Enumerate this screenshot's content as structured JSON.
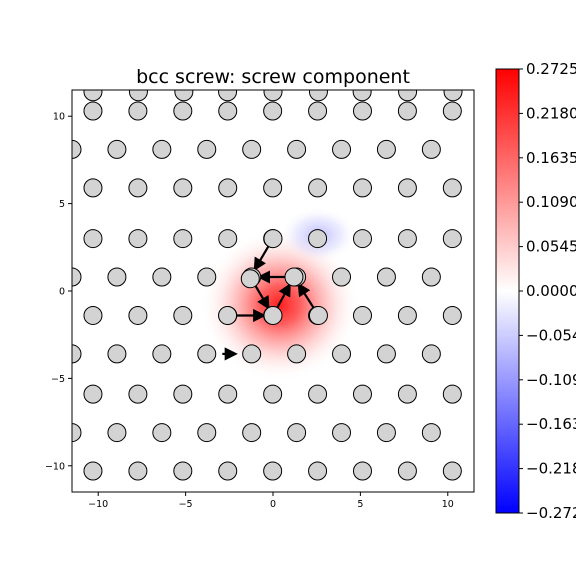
{
  "chart_data": {
    "type": "scatter",
    "title": "bcc screw: screw component",
    "xlabel": "",
    "ylabel": "",
    "xlim": [
      -11.5,
      11.5
    ],
    "ylim": [
      -11.5,
      11.5
    ],
    "x_ticks": [
      -10,
      -5,
      0,
      5,
      10
    ],
    "x_tick_labels": [
      "−10",
      "−5",
      "0",
      "5",
      "10"
    ],
    "y_ticks": [
      -10,
      -5,
      0,
      5,
      10
    ],
    "y_tick_labels": [
      "−10",
      "−5",
      "0",
      "5",
      "10"
    ],
    "grid": false,
    "atoms": {
      "row_y": [
        10.3,
        8.1,
        5.9,
        3.0,
        0.8,
        -1.4,
        -3.6,
        -5.9,
        -8.1,
        -10.3
      ],
      "row_x_start": [
        -10.3,
        -11.5,
        -10.3,
        -10.3,
        -11.5,
        -10.3,
        -11.5,
        -10.3,
        -11.5,
        -10.3
      ],
      "x_spacing": 2.57,
      "face_color": "#d3d3d3",
      "edge_color": "#000000"
    },
    "atoms_cut": [
      [
        -10.3,
        11.4
      ],
      [
        -7.7,
        11.4
      ],
      [
        -5.1,
        11.4
      ],
      [
        -2.6,
        11.4
      ],
      [
        0.0,
        11.4
      ],
      [
        2.6,
        11.4
      ],
      [
        5.1,
        11.4
      ],
      [
        7.7,
        11.4
      ],
      [
        10.3,
        11.4
      ]
    ],
    "core_atoms": [
      [
        -1.3,
        0.7
      ],
      [
        1.2,
        0.8
      ],
      [
        -2.6,
        -1.4
      ],
      [
        0.0,
        -1.4
      ],
      [
        2.6,
        -1.4
      ],
      [
        0.0,
        3.0
      ]
    ],
    "arrows": [
      {
        "from": [
          0.0,
          3.0
        ],
        "to": [
          -1.3,
          0.8
        ]
      },
      {
        "from": [
          1.2,
          0.8
        ],
        "to": [
          -1.3,
          0.8
        ]
      },
      {
        "from": [
          -1.3,
          0.8
        ],
        "to": [
          0.0,
          -1.4
        ]
      },
      {
        "from": [
          0.0,
          -1.4
        ],
        "to": [
          1.2,
          0.8
        ]
      },
      {
        "from": [
          2.6,
          -1.4
        ],
        "to": [
          1.2,
          0.8
        ]
      },
      {
        "from": [
          -2.6,
          -1.4
        ],
        "to": [
          0.0,
          -1.4
        ]
      },
      {
        "from": [
          -2.9,
          -3.6
        ],
        "to": [
          -2.2,
          -3.6
        ]
      }
    ],
    "field": {
      "positive_center": [
        0.4,
        -0.8
      ],
      "positive_peak": 0.2725,
      "negative_center": [
        2.6,
        3.2
      ],
      "negative_peak": -0.07,
      "colormap": "bwr",
      "vmin": -0.2725,
      "vmax": 0.2725
    },
    "colorbar": {
      "ticks": [
        0.2725,
        0.218,
        0.1635,
        0.109,
        0.0545,
        0.0,
        -0.0545,
        -0.109,
        -0.1635,
        -0.218,
        -0.2725
      ],
      "tick_labels": [
        "0.2725",
        "0.2180",
        "0.1635",
        "0.1090",
        "0.0545",
        "0.0000",
        "−0.0545",
        "−0.1090",
        "−0.1635",
        "−0.2180",
        "−0.2725"
      ],
      "color_top": "#ff0000",
      "color_mid": "#ffffff",
      "color_bottom": "#0000ff"
    }
  }
}
